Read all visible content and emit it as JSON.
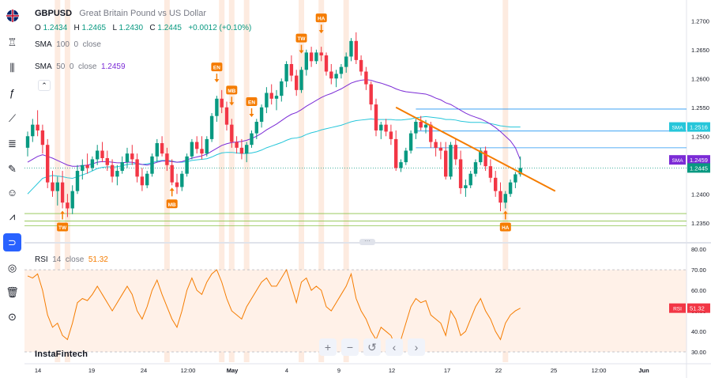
{
  "header": {
    "symbol": "GBPUSD",
    "description": "Great Britain Pound vs US Dollar",
    "ohlc": {
      "o_label": "O",
      "o": "1.2434",
      "h_label": "H",
      "h": "1.2465",
      "l_label": "L",
      "l": "1.2430",
      "c_label": "C",
      "c": "1.2445",
      "change": "+0.0012 (+0.10%)"
    }
  },
  "indicators": {
    "sma100": {
      "name": "SMA",
      "length": "100",
      "offset": "0",
      "source": "close",
      "value": ""
    },
    "sma50": {
      "name": "SMA",
      "length": "50",
      "offset": "0",
      "source": "close",
      "value": "1.2459"
    },
    "rsi": {
      "name": "RSI",
      "length": "14",
      "source": "close",
      "value": "51.32"
    }
  },
  "brand": "InstaFintech",
  "nav_buttons": [
    {
      "name": "zoom-in",
      "glyph": "+"
    },
    {
      "name": "zoom-out",
      "glyph": "−"
    },
    {
      "name": "reset",
      "glyph": "↺"
    },
    {
      "name": "scroll-left",
      "glyph": "‹"
    },
    {
      "name": "scroll-right",
      "glyph": "›"
    }
  ],
  "toolbar_icons": [
    "flag-icon",
    "candles-icon",
    "indicators-icon",
    "fx-icon",
    "trend-line-icon",
    "fib-icon",
    "brush-icon",
    "emoji-icon",
    "pattern-icon",
    "magnet-icon",
    "hide-drawings-icon",
    "delete-icon",
    "lock-icon"
  ],
  "colors": {
    "up": "#089981",
    "down": "#f23645",
    "sma100": "#26c6da",
    "sma50": "#7b2bd6",
    "trend": "#f57c00",
    "rsi": "#f57c00",
    "highlight": "#fce4d6",
    "hline_blue": "#2196f3",
    "hline_green": "#8bc34a"
  },
  "chart_data": {
    "type": "candlestick",
    "price_axis": {
      "ticks": [
        "1.2700",
        "1.2650",
        "1.2600",
        "1.2550",
        "1.2500",
        "1.2450",
        "1.2400",
        "1.2350"
      ],
      "range": [
        1.2325,
        1.2725
      ]
    },
    "time_axis": {
      "ticks": [
        "14",
        "19",
        "24",
        "12:00",
        "May",
        "4",
        "9",
        "12",
        "17",
        "22",
        "25",
        "12:00",
        "Jun"
      ]
    },
    "candles": [
      [
        1.248,
        1.2508,
        1.2465,
        1.25
      ],
      [
        1.25,
        1.253,
        1.249,
        1.252
      ],
      [
        1.252,
        1.2545,
        1.25,
        1.251
      ],
      [
        1.251,
        1.252,
        1.247,
        1.2485
      ],
      [
        1.2485,
        1.2495,
        1.241,
        1.242
      ],
      [
        1.242,
        1.244,
        1.2395,
        1.2405
      ],
      [
        1.2405,
        1.243,
        1.238,
        1.242
      ],
      [
        1.242,
        1.244,
        1.2375,
        1.2385
      ],
      [
        1.2385,
        1.24,
        1.236,
        1.2375
      ],
      [
        1.2375,
        1.2415,
        1.2365,
        1.2405
      ],
      [
        1.2405,
        1.245,
        1.24,
        1.244
      ],
      [
        1.244,
        1.246,
        1.2425,
        1.245
      ],
      [
        1.245,
        1.247,
        1.2435,
        1.2445
      ],
      [
        1.2445,
        1.2465,
        1.244,
        1.246
      ],
      [
        1.246,
        1.2485,
        1.245,
        1.2475
      ],
      [
        1.2475,
        1.249,
        1.2455,
        1.2462
      ],
      [
        1.2462,
        1.2475,
        1.244,
        1.245
      ],
      [
        1.245,
        1.246,
        1.242,
        1.243
      ],
      [
        1.243,
        1.245,
        1.2415,
        1.244
      ],
      [
        1.244,
        1.2465,
        1.2435,
        1.2455
      ],
      [
        1.2455,
        1.248,
        1.2445,
        1.247
      ],
      [
        1.247,
        1.2485,
        1.245,
        1.246
      ],
      [
        1.246,
        1.247,
        1.242,
        1.243
      ],
      [
        1.243,
        1.2445,
        1.2405,
        1.2415
      ],
      [
        1.2415,
        1.244,
        1.241,
        1.2435
      ],
      [
        1.2435,
        1.247,
        1.243,
        1.2465
      ],
      [
        1.2465,
        1.2495,
        1.2455,
        1.2488
      ],
      [
        1.2488,
        1.25,
        1.2465,
        1.247
      ],
      [
        1.247,
        1.248,
        1.244,
        1.245
      ],
      [
        1.245,
        1.246,
        1.2415,
        1.242
      ],
      [
        1.242,
        1.2435,
        1.24,
        1.2412
      ],
      [
        1.2412,
        1.244,
        1.2405,
        1.2435
      ],
      [
        1.2435,
        1.247,
        1.243,
        1.2465
      ],
      [
        1.2465,
        1.2495,
        1.246,
        1.249
      ],
      [
        1.249,
        1.25,
        1.247,
        1.2478
      ],
      [
        1.2478,
        1.25,
        1.246,
        1.247
      ],
      [
        1.247,
        1.25,
        1.2465,
        1.2495
      ],
      [
        1.2495,
        1.254,
        1.249,
        1.2535
      ],
      [
        1.2535,
        1.257,
        1.2525,
        1.2565
      ],
      [
        1.2565,
        1.258,
        1.254,
        1.255
      ],
      [
        1.255,
        1.256,
        1.251,
        1.252
      ],
      [
        1.252,
        1.253,
        1.248,
        1.249
      ],
      [
        1.249,
        1.25,
        1.247,
        1.248
      ],
      [
        1.248,
        1.2495,
        1.246,
        1.247
      ],
      [
        1.247,
        1.249,
        1.2455,
        1.2485
      ],
      [
        1.2485,
        1.251,
        1.248,
        1.2505
      ],
      [
        1.2505,
        1.253,
        1.2495,
        1.2525
      ],
      [
        1.2525,
        1.2555,
        1.2515,
        1.255
      ],
      [
        1.255,
        1.2585,
        1.254,
        1.2575
      ],
      [
        1.2575,
        1.259,
        1.2555,
        1.2565
      ],
      [
        1.2565,
        1.258,
        1.2545,
        1.257
      ],
      [
        1.257,
        1.26,
        1.256,
        1.2595
      ],
      [
        1.2595,
        1.263,
        1.2585,
        1.2625
      ],
      [
        1.2625,
        1.264,
        1.2595,
        1.2605
      ],
      [
        1.2605,
        1.2615,
        1.257,
        1.258
      ],
      [
        1.258,
        1.262,
        1.2575,
        1.2615
      ],
      [
        1.2615,
        1.265,
        1.2605,
        1.2645
      ],
      [
        1.2645,
        1.2655,
        1.262,
        1.263
      ],
      [
        1.263,
        1.265,
        1.2625,
        1.2645
      ],
      [
        1.2645,
        1.2655,
        1.263,
        1.264
      ],
      [
        1.264,
        1.2645,
        1.2605,
        1.2612
      ],
      [
        1.2612,
        1.2625,
        1.259,
        1.26
      ],
      [
        1.26,
        1.2615,
        1.2585,
        1.2608
      ],
      [
        1.2608,
        1.2625,
        1.26,
        1.262
      ],
      [
        1.262,
        1.2645,
        1.261,
        1.2638
      ],
      [
        1.2638,
        1.267,
        1.263,
        1.2665
      ],
      [
        1.2665,
        1.268,
        1.2625,
        1.2632
      ],
      [
        1.2632,
        1.264,
        1.2605,
        1.2612
      ],
      [
        1.2612,
        1.262,
        1.258,
        1.259
      ],
      [
        1.259,
        1.2595,
        1.2545,
        1.2555
      ],
      [
        1.2555,
        1.2565,
        1.25,
        1.251
      ],
      [
        1.251,
        1.2525,
        1.2495,
        1.252
      ],
      [
        1.252,
        1.253,
        1.25,
        1.2508
      ],
      [
        1.2508,
        1.252,
        1.2485,
        1.2495
      ],
      [
        1.2495,
        1.251,
        1.244,
        1.2445
      ],
      [
        1.2445,
        1.246,
        1.2438,
        1.2455
      ],
      [
        1.2455,
        1.248,
        1.245,
        1.2475
      ],
      [
        1.2475,
        1.251,
        1.247,
        1.2505
      ],
      [
        1.2505,
        1.253,
        1.2495,
        1.2525
      ],
      [
        1.2525,
        1.2535,
        1.251,
        1.2515
      ],
      [
        1.2515,
        1.2528,
        1.2505,
        1.252
      ],
      [
        1.252,
        1.2525,
        1.248,
        1.249
      ],
      [
        1.249,
        1.2495,
        1.2465,
        1.248
      ],
      [
        1.248,
        1.249,
        1.246,
        1.2475
      ],
      [
        1.2475,
        1.249,
        1.2425,
        1.243
      ],
      [
        1.243,
        1.249,
        1.2425,
        1.2485
      ],
      [
        1.2485,
        1.2495,
        1.245,
        1.246
      ],
      [
        1.246,
        1.2475,
        1.24,
        1.241
      ],
      [
        1.241,
        1.2425,
        1.2395,
        1.2415
      ],
      [
        1.2415,
        1.244,
        1.241,
        1.2435
      ],
      [
        1.2435,
        1.246,
        1.243,
        1.2455
      ],
      [
        1.2455,
        1.248,
        1.245,
        1.2475
      ],
      [
        1.2475,
        1.2482,
        1.244,
        1.2448
      ],
      [
        1.2448,
        1.246,
        1.242,
        1.2428
      ],
      [
        1.2428,
        1.244,
        1.2395,
        1.2405
      ],
      [
        1.2405,
        1.242,
        1.237,
        1.2385
      ],
      [
        1.2385,
        1.2405,
        1.2375,
        1.24
      ],
      [
        1.24,
        1.2425,
        1.2395,
        1.242
      ],
      [
        1.242,
        1.2438,
        1.241,
        1.2434
      ],
      [
        1.2434,
        1.2465,
        1.243,
        1.2445
      ]
    ],
    "sma100": [
      1.24,
      1.2409,
      1.2418,
      1.2427,
      1.243,
      1.2432,
      1.2431,
      1.243,
      1.2428,
      1.2427,
      1.243,
      1.2433,
      1.2436,
      1.244,
      1.2444,
      1.2446,
      1.2447,
      1.2447,
      1.2447,
      1.2449,
      1.2451,
      1.2452,
      1.2452,
      1.2451,
      1.2452,
      1.2454,
      1.2457,
      1.2458,
      1.2458,
      1.2457,
      1.2455,
      1.2455,
      1.2456,
      1.2458,
      1.2459,
      1.246,
      1.2461,
      1.2464,
      1.2468,
      1.2471,
      1.2472,
      1.2472,
      1.2471,
      1.247,
      1.247,
      1.2471,
      1.2473,
      1.2476,
      1.248,
      1.2483,
      1.2486,
      1.2489,
      1.2493,
      1.2496,
      1.2497,
      1.2499,
      1.2503,
      1.2506,
      1.2508,
      1.2511,
      1.2513,
      1.2515,
      1.2517,
      1.2519,
      1.2522,
      1.2525,
      1.2527,
      1.2528,
      1.2529,
      1.253,
      1.2529,
      1.2529,
      1.2529,
      1.2529,
      1.2528,
      1.2528,
      1.2529,
      1.253,
      1.2532,
      1.2533,
      1.2534,
      1.2533,
      1.2532,
      1.2531,
      1.2529,
      1.2529,
      1.2528,
      1.2526,
      1.2525,
      1.2524,
      1.2524,
      1.2524,
      1.2523,
      1.2522,
      1.252,
      1.2518,
      1.2517,
      1.2516,
      1.2516,
      1.2516
    ],
    "sma50": [
      1.2455,
      1.246,
      1.2465,
      1.2468,
      1.2465,
      1.2462,
      1.2458,
      1.2454,
      1.245,
      1.2448,
      1.2448,
      1.2449,
      1.245,
      1.2452,
      1.2455,
      1.2456,
      1.2456,
      1.2455,
      1.2454,
      1.2454,
      1.2455,
      1.2455,
      1.2453,
      1.2451,
      1.245,
      1.2452,
      1.2455,
      1.2457,
      1.2457,
      1.2456,
      1.2455,
      1.2456,
      1.2459,
      1.2462,
      1.2464,
      1.2466,
      1.2469,
      1.2474,
      1.2479,
      1.2484,
      1.2487,
      1.2489,
      1.249,
      1.2491,
      1.2493,
      1.2496,
      1.25,
      1.2505,
      1.2511,
      1.2516,
      1.2521,
      1.2527,
      1.2533,
      1.2538,
      1.2541,
      1.2546,
      1.2552,
      1.2557,
      1.2562,
      1.2567,
      1.2571,
      1.2574,
      1.2578,
      1.2582,
      1.2587,
      1.2592,
      1.2595,
      1.2597,
      1.2598,
      1.2597,
      1.2594,
      1.2592,
      1.2589,
      1.2586,
      1.2582,
      1.2579,
      1.2577,
      1.2576,
      1.2575,
      1.2574,
      1.2573,
      1.257,
      1.2566,
      1.2563,
      1.2558,
      1.2555,
      1.255,
      1.2545,
      1.254,
      1.2536,
      1.2533,
      1.253,
      1.2526,
      1.2521,
      1.2515,
      1.2508,
      1.25,
      1.2492,
      1.248,
      1.2459
    ],
    "rsi": [
      67,
      66,
      68,
      60,
      48,
      42,
      44,
      38,
      36,
      44,
      54,
      56,
      55,
      58,
      62,
      58,
      54,
      50,
      54,
      58,
      62,
      58,
      50,
      46,
      52,
      60,
      65,
      58,
      52,
      46,
      42,
      50,
      60,
      66,
      60,
      58,
      64,
      68,
      70,
      64,
      56,
      50,
      48,
      46,
      52,
      56,
      60,
      64,
      66,
      62,
      62,
      66,
      70,
      62,
      54,
      64,
      66,
      60,
      62,
      60,
      52,
      50,
      54,
      58,
      62,
      68,
      56,
      50,
      46,
      40,
      36,
      42,
      40,
      38,
      32,
      36,
      44,
      52,
      56,
      54,
      55,
      48,
      46,
      44,
      38,
      50,
      46,
      38,
      40,
      46,
      52,
      56,
      50,
      46,
      40,
      36,
      44,
      48,
      50,
      51.32
    ],
    "rsi_axis": {
      "ticks": [
        "80.00",
        "70.00",
        "60.00",
        "50.00",
        "40.00",
        "30.00"
      ],
      "range": [
        25,
        82
      ],
      "upper": 70,
      "lower": 30
    },
    "horizontal_lines": [
      {
        "price": 1.2547,
        "color": "blue"
      },
      {
        "price": 1.2509,
        "color": "blue"
      },
      {
        "price": 1.248,
        "color": "blue"
      },
      {
        "price": 1.2366,
        "color": "green"
      },
      {
        "price": 1.2353,
        "color": "green"
      },
      {
        "price": 1.2345,
        "color": "green"
      }
    ],
    "trendline": {
      "from": [
        74,
        1.255
      ],
      "to": [
        106,
        1.2405
      ]
    },
    "markers": [
      {
        "label": "TW",
        "index": 7,
        "position": "below"
      },
      {
        "label": "MB",
        "index": 29,
        "position": "below"
      },
      {
        "label": "EN",
        "index": 38,
        "position": "above"
      },
      {
        "label": "MB",
        "index": 41,
        "position": "above"
      },
      {
        "label": "EN",
        "index": 45,
        "position": "above"
      },
      {
        "label": "TW",
        "index": 55,
        "position": "above"
      },
      {
        "label": "HA",
        "index": 59,
        "position": "above"
      },
      {
        "label": "HA",
        "index": 96,
        "position": "below"
      }
    ],
    "highlight_bands": [
      6,
      8,
      28,
      39,
      41,
      44,
      55,
      59,
      64,
      96
    ],
    "price_labels": [
      {
        "name": "SMA",
        "value": "1.2516",
        "kind": "sma100"
      },
      {
        "name": "SMA",
        "value": "1.2459",
        "kind": "sma50"
      },
      {
        "name": "",
        "value": "1.2445",
        "kind": "last"
      },
      {
        "name": "RSI",
        "value": "51.32",
        "kind": "rsi"
      }
    ]
  }
}
